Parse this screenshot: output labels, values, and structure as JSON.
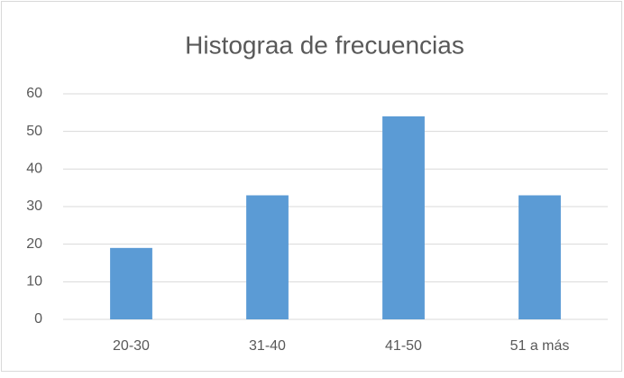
{
  "chart_data": {
    "type": "bar",
    "title": "Histograa de frecuencias",
    "categories": [
      "20-30",
      "31-40",
      "41-50",
      "51 a más"
    ],
    "values": [
      19,
      33,
      54,
      33
    ],
    "color": "#5b9bd5",
    "ylim": [
      0,
      60
    ],
    "yticks": [
      0,
      10,
      20,
      30,
      40,
      50,
      60
    ],
    "grid": true
  }
}
